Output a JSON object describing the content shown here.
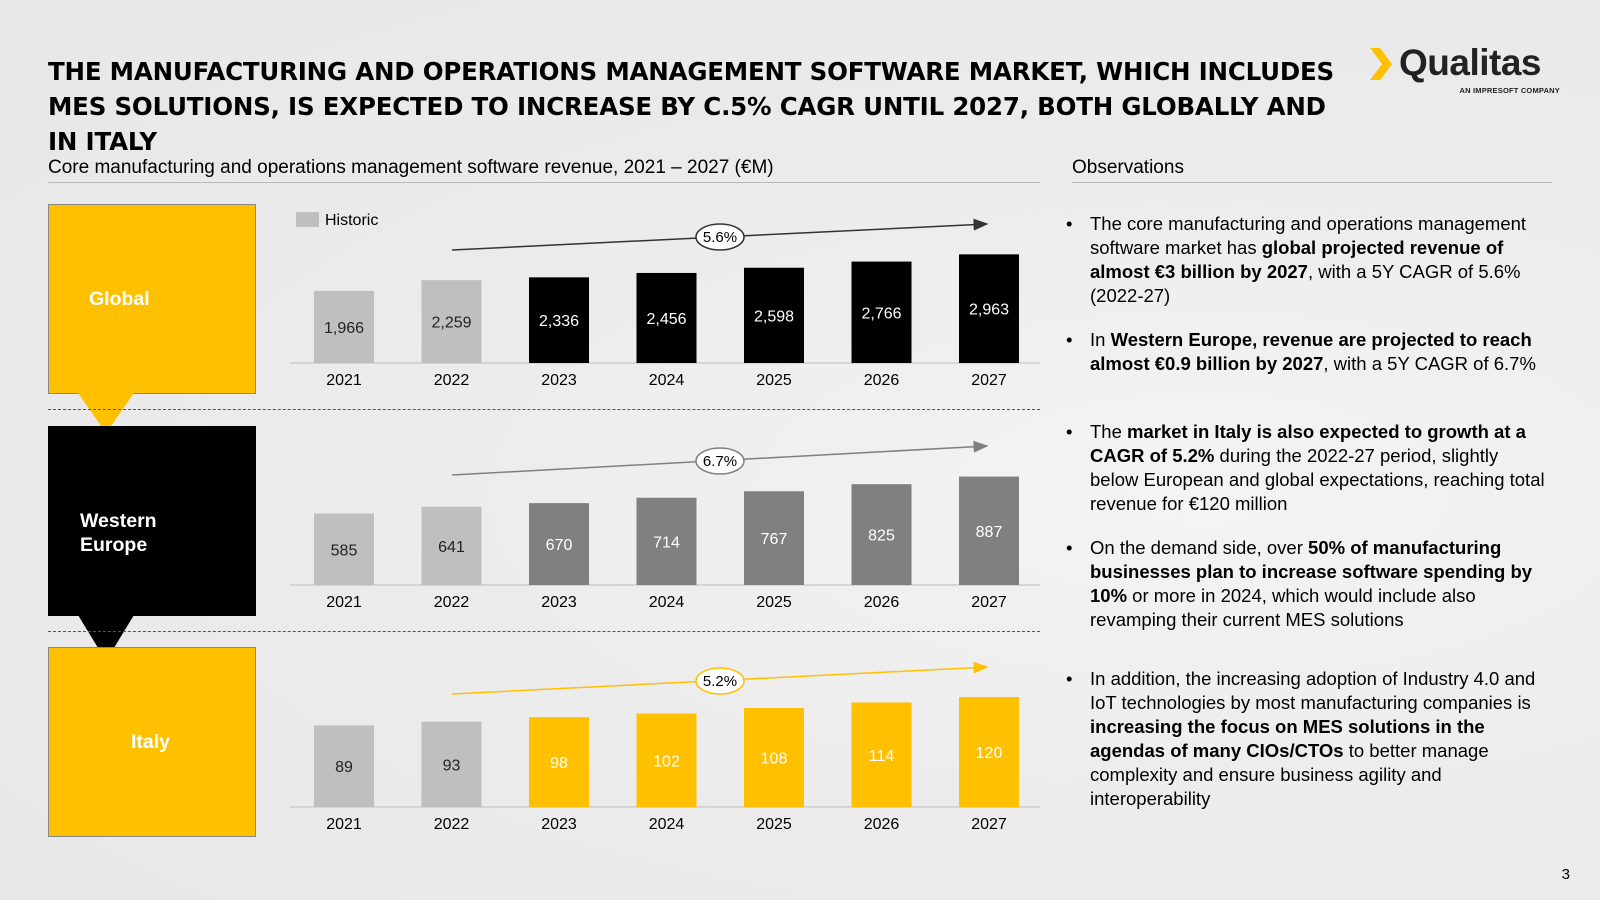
{
  "title": "THE MANUFACTURING AND OPERATIONS MANAGEMENT SOFTWARE MARKET, WHICH INCLUDES MES SOLUTIONS, IS EXPECTED TO INCREASE BY C.5% CAGR UNTIL 2027, BOTH GLOBALLY AND IN ITALY",
  "logo": {
    "name": "Qualitas",
    "tagline": "AN IMPRESOFT COMPANY"
  },
  "chart_heading": "Core manufacturing and operations management software revenue, 2021 – 2027 (€M)",
  "observations_heading": "Observations",
  "legend": {
    "label": "Historic",
    "color": "#bfbfbf"
  },
  "regions": [
    {
      "name": "Global",
      "box_color": "#ffc000"
    },
    {
      "name": "Western\nEurope",
      "box_color": "#000000"
    },
    {
      "name": "Italy",
      "box_color": "#ffc000"
    }
  ],
  "chart_data": [
    {
      "type": "bar",
      "region": "Global",
      "categories": [
        "2021",
        "2022",
        "2023",
        "2024",
        "2025",
        "2026",
        "2027"
      ],
      "values": [
        1966,
        2259,
        2336,
        2456,
        2598,
        2766,
        2963
      ],
      "labels": [
        "1,966",
        "2,259",
        "2,336",
        "2,456",
        "2,598",
        "2,766",
        "2,963"
      ],
      "historic_count": 2,
      "historic_color": "#bfbfbf",
      "projected_color": "#000000",
      "cagr": "5.6%",
      "ylim": [
        0,
        3000
      ]
    },
    {
      "type": "bar",
      "region": "Western Europe",
      "categories": [
        "2021",
        "2022",
        "2023",
        "2024",
        "2025",
        "2026",
        "2027"
      ],
      "values": [
        585,
        641,
        670,
        714,
        767,
        825,
        887
      ],
      "labels": [
        "585",
        "641",
        "670",
        "714",
        "767",
        "825",
        "887"
      ],
      "historic_count": 2,
      "historic_color": "#bfbfbf",
      "projected_color": "#808080",
      "cagr": "6.7%",
      "ylim": [
        0,
        900
      ]
    },
    {
      "type": "bar",
      "region": "Italy",
      "categories": [
        "2021",
        "2022",
        "2023",
        "2024",
        "2025",
        "2026",
        "2027"
      ],
      "values": [
        89,
        93,
        98,
        102,
        108,
        114,
        120
      ],
      "labels": [
        "89",
        "93",
        "98",
        "102",
        "108",
        "114",
        "120"
      ],
      "historic_count": 2,
      "historic_color": "#bfbfbf",
      "projected_color": "#ffc000",
      "cagr": "5.2%",
      "ylim": [
        0,
        120
      ]
    }
  ],
  "observations": [
    [
      {
        "t": "The core manufacturing and operations management software market has ",
        "b": false
      },
      {
        "t": "global projected revenue of almost €3 billion by 2027",
        "b": true
      },
      {
        "t": ", with a 5Y CAGR of 5.6% (2022-27)",
        "b": false
      }
    ],
    [
      {
        "t": "In ",
        "b": false
      },
      {
        "t": "Western Europe, revenue are projected to reach almost €0.9 billion by 2027",
        "b": true
      },
      {
        "t": ", with a 5Y CAGR of 6.7%",
        "b": false
      }
    ],
    [
      {
        "t": "The ",
        "b": false
      },
      {
        "t": "market in Italy is also expected to growth at a CAGR of 5.2%",
        "b": true
      },
      {
        "t": " during the 2022-27 period, slightly below European and global expectations, reaching total revenue for €120 million",
        "b": false
      }
    ],
    [
      {
        "t": "On the demand side, over ",
        "b": false
      },
      {
        "t": "50% of manufacturing businesses plan to increase software spending by 10%",
        "b": true
      },
      {
        "t": " or more in 2024, which would include also revamping their current MES solutions",
        "b": false
      }
    ],
    [
      {
        "t": "In addition, the increasing adoption of Industry 4.0 and IoT technologies by most manufacturing companies is ",
        "b": false
      },
      {
        "t": "increasing the focus on MES solutions in the agendas of many CIOs/CTOs",
        "b": true
      },
      {
        "t": " to better manage complexity and ensure business agility and interoperability",
        "b": false
      }
    ]
  ],
  "page_number": "3"
}
